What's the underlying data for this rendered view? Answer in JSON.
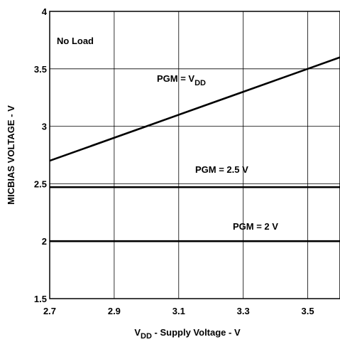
{
  "chart_data": {
    "type": "line",
    "title": "",
    "xlabel": "V",
    "xlabel_sub": "DD",
    "xlabel_rest": " - Supply Voltage - V",
    "ylabel": "MICBIAS VOLTAGE - V",
    "xlim": [
      2.7,
      3.6
    ],
    "ylim": [
      1.5,
      4
    ],
    "x_ticks": [
      2.7,
      2.9,
      3.1,
      3.3,
      3.5
    ],
    "x_tick_labels": [
      "2.7",
      "2.9",
      "3.1",
      "3.3",
      "3.5"
    ],
    "y_ticks": [
      1.5,
      2,
      2.5,
      3,
      3.5,
      4
    ],
    "y_tick_labels": [
      "1.5",
      "2",
      "2.5",
      "3",
      "3.5",
      "4"
    ],
    "grid": true,
    "series": [
      {
        "name": "PGM = V",
        "name_sub": "DD",
        "x": [
          2.7,
          2.8,
          2.9,
          3.0,
          3.1,
          3.2,
          3.3,
          3.4,
          3.5,
          3.6
        ],
        "y": [
          2.7,
          2.8,
          2.9,
          3.0,
          3.1,
          3.2,
          3.3,
          3.4,
          3.5,
          3.6
        ]
      },
      {
        "name": "PGM = 2.5 V",
        "x": [
          2.7,
          3.6
        ],
        "y": [
          2.47,
          2.47
        ]
      },
      {
        "name": "PGM = 2 V",
        "x": [
          2.7,
          3.6
        ],
        "y": [
          2.0,
          2.0
        ]
      }
    ],
    "annotations": [
      {
        "text": "No Load"
      }
    ]
  }
}
